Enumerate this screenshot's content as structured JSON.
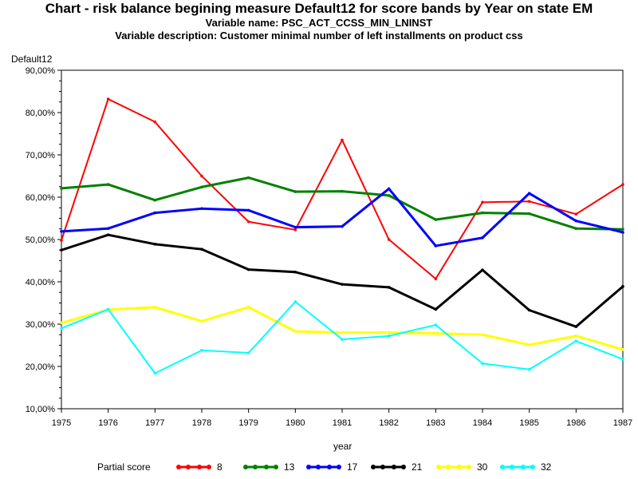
{
  "header": {
    "title": "Chart - risk balance begining measure Default12 for score bands by Year on state EM",
    "variable_name": "Variable name: PSC_ACT_CCSS_MIN_LNINST",
    "variable_description": "Variable description: Customer minimal number of left installments on product css"
  },
  "legend": {
    "title": "Partial score"
  },
  "chart_data": {
    "type": "line",
    "title": "Chart - risk balance begining measure Default12 for score bands by Year on state EM",
    "xlabel": "year",
    "ylabel": "Default12",
    "x": [
      "1975",
      "1976",
      "1977",
      "1978",
      "1979",
      "1980",
      "1981",
      "1982",
      "1983",
      "1984",
      "1985",
      "1986",
      "1987"
    ],
    "ylim": [
      10,
      90
    ],
    "yticks": [
      10,
      20,
      30,
      40,
      50,
      60,
      70,
      80,
      90
    ],
    "ytick_labels": [
      "10,00%",
      "20,00%",
      "30,00%",
      "40,00%",
      "50,00%",
      "60,00%",
      "70,00%",
      "80,00%",
      "90,00%"
    ],
    "grid": false,
    "legend_position": "bottom",
    "series": [
      {
        "name": "8",
        "color": "#ff0000",
        "values": [
          49.8,
          83.2,
          77.8,
          65.0,
          54.2,
          52.3,
          73.5,
          50.0,
          40.7,
          58.8,
          59.0,
          56.0,
          63.0
        ]
      },
      {
        "name": "13",
        "color": "#008000",
        "values": [
          62.1,
          63.0,
          59.3,
          62.4,
          64.6,
          61.3,
          61.4,
          60.4,
          54.7,
          56.3,
          56.1,
          52.6,
          52.4
        ]
      },
      {
        "name": "17",
        "color": "#0000ff",
        "values": [
          51.9,
          52.6,
          56.3,
          57.3,
          56.9,
          52.9,
          53.1,
          62.0,
          48.5,
          50.4,
          60.9,
          54.4,
          51.7
        ]
      },
      {
        "name": "21",
        "color": "#000000",
        "values": [
          47.5,
          51.1,
          48.9,
          47.7,
          42.9,
          42.3,
          39.4,
          38.7,
          33.5,
          42.8,
          33.3,
          29.4,
          38.9
        ]
      },
      {
        "name": "30",
        "color": "#ffff00",
        "values": [
          30.3,
          33.4,
          34.0,
          30.7,
          34.0,
          28.3,
          28.0,
          28.0,
          27.8,
          27.5,
          25.1,
          27.2,
          24.0
        ]
      },
      {
        "name": "32",
        "color": "#00ffff",
        "values": [
          29.0,
          33.5,
          18.4,
          23.8,
          23.2,
          35.3,
          26.4,
          27.2,
          29.8,
          20.7,
          19.3,
          26.0,
          21.7
        ]
      }
    ]
  }
}
